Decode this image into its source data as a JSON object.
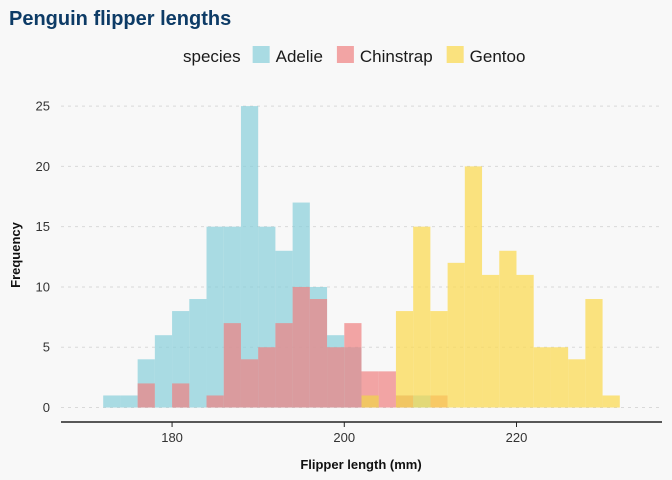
{
  "chart_data": {
    "type": "bar",
    "subtype": "overlapping-histogram",
    "title": "Penguin flipper lengths",
    "xlabel": "Flipper length (mm)",
    "ylabel": "Frequency",
    "legend_title": "species",
    "legend_position": "top",
    "xlim": [
      167.1,
      236.9
    ],
    "ylim": [
      -1.2,
      26.5
    ],
    "xticks": [
      180,
      200,
      220
    ],
    "yticks": [
      0,
      5,
      10,
      15,
      20,
      25
    ],
    "grid": "horizontal-dashed",
    "bin_width": 2,
    "series": [
      {
        "name": "Adelie",
        "color": "#87ceda",
        "bins": [
          {
            "x0": 172,
            "x1": 174,
            "count": 1
          },
          {
            "x0": 174,
            "x1": 176,
            "count": 1
          },
          {
            "x0": 176,
            "x1": 178,
            "count": 4
          },
          {
            "x0": 178,
            "x1": 180,
            "count": 6
          },
          {
            "x0": 180,
            "x1": 182,
            "count": 8
          },
          {
            "x0": 182,
            "x1": 184,
            "count": 9
          },
          {
            "x0": 184,
            "x1": 186,
            "count": 15
          },
          {
            "x0": 186,
            "x1": 188,
            "count": 15
          },
          {
            "x0": 188,
            "x1": 190,
            "count": 25
          },
          {
            "x0": 190,
            "x1": 192,
            "count": 15
          },
          {
            "x0": 192,
            "x1": 194,
            "count": 13
          },
          {
            "x0": 194,
            "x1": 196,
            "count": 17
          },
          {
            "x0": 196,
            "x1": 198,
            "count": 10
          },
          {
            "x0": 198,
            "x1": 200,
            "count": 6
          },
          {
            "x0": 200,
            "x1": 202,
            "count": 5
          },
          {
            "x0": 202,
            "x1": 204,
            "count": 1
          },
          {
            "x0": 206,
            "x1": 208,
            "count": 1
          },
          {
            "x0": 208,
            "x1": 210,
            "count": 1
          }
        ]
      },
      {
        "name": "Chinstrap",
        "color": "#f08080",
        "bins": [
          {
            "x0": 176,
            "x1": 178,
            "count": 2
          },
          {
            "x0": 180,
            "x1": 182,
            "count": 2
          },
          {
            "x0": 184,
            "x1": 186,
            "count": 1
          },
          {
            "x0": 186,
            "x1": 188,
            "count": 7
          },
          {
            "x0": 188,
            "x1": 190,
            "count": 4
          },
          {
            "x0": 190,
            "x1": 192,
            "count": 5
          },
          {
            "x0": 192,
            "x1": 194,
            "count": 7
          },
          {
            "x0": 194,
            "x1": 196,
            "count": 10
          },
          {
            "x0": 196,
            "x1": 198,
            "count": 9
          },
          {
            "x0": 198,
            "x1": 200,
            "count": 5
          },
          {
            "x0": 200,
            "x1": 202,
            "count": 7
          },
          {
            "x0": 202,
            "x1": 204,
            "count": 3
          },
          {
            "x0": 204,
            "x1": 206,
            "count": 3
          },
          {
            "x0": 206,
            "x1": 208,
            "count": 1
          },
          {
            "x0": 210,
            "x1": 212,
            "count": 1
          }
        ]
      },
      {
        "name": "Gentoo",
        "color": "#fbd84a",
        "bins": [
          {
            "x0": 202,
            "x1": 204,
            "count": 1
          },
          {
            "x0": 206,
            "x1": 208,
            "count": 8
          },
          {
            "x0": 208,
            "x1": 210,
            "count": 15
          },
          {
            "x0": 210,
            "x1": 212,
            "count": 8
          },
          {
            "x0": 212,
            "x1": 214,
            "count": 12
          },
          {
            "x0": 214,
            "x1": 216,
            "count": 20
          },
          {
            "x0": 216,
            "x1": 218,
            "count": 11
          },
          {
            "x0": 218,
            "x1": 220,
            "count": 13
          },
          {
            "x0": 220,
            "x1": 222,
            "count": 11
          },
          {
            "x0": 222,
            "x1": 224,
            "count": 5
          },
          {
            "x0": 224,
            "x1": 226,
            "count": 5
          },
          {
            "x0": 226,
            "x1": 228,
            "count": 4
          },
          {
            "x0": 228,
            "x1": 230,
            "count": 9
          },
          {
            "x0": 230,
            "x1": 232,
            "count": 1
          }
        ]
      }
    ]
  }
}
